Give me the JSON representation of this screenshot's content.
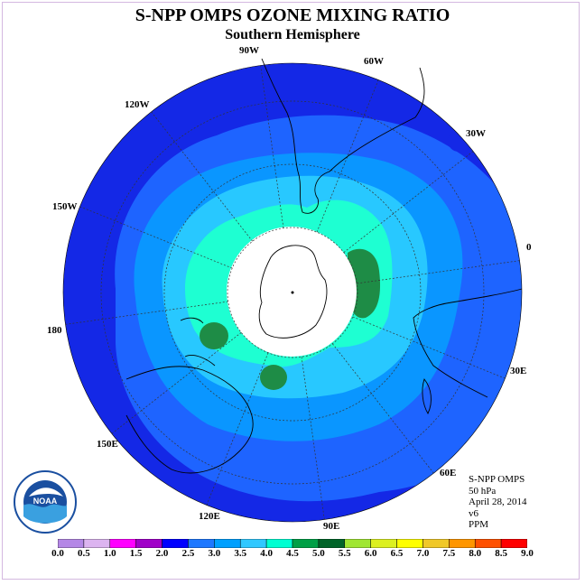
{
  "title": "S-NPP OMPS OZONE MIXING RATIO",
  "subtitle": "Southern Hemisphere",
  "longitude_labels": {
    "lon_90w": "90W",
    "lon_60w": "60W",
    "lon_120w": "120W",
    "lon_30w": "30W",
    "lon_150w": "150W",
    "lon_0": "0",
    "lon_180": "180",
    "lon_30e": "30E",
    "lon_150e": "150E",
    "lon_60e": "60E",
    "lon_120e": "120E",
    "lon_90e": "90E"
  },
  "info": {
    "instrument": "S-NPP OMPS",
    "level": "50 hPa",
    "date": "April 28, 2014",
    "version": "v6",
    "units": "PPM"
  },
  "logo": {
    "text": "NOAA"
  },
  "colorbar": {
    "ticks": [
      "0.0",
      "0.5",
      "1.0",
      "1.5",
      "2.0",
      "2.5",
      "3.0",
      "3.5",
      "4.0",
      "4.5",
      "5.0",
      "5.5",
      "6.0",
      "6.5",
      "7.0",
      "7.5",
      "8.0",
      "8.5",
      "9.0"
    ],
    "colors": [
      "#b487e6",
      "#dcb4f0",
      "#ff00ff",
      "#a000c8",
      "#0000ff",
      "#1e78ff",
      "#00a0ff",
      "#30c8ff",
      "#00ffd2",
      "#00a046",
      "#006428",
      "#a0e632",
      "#dcf020",
      "#ffff00",
      "#f0c828",
      "#ff9600",
      "#ff5000",
      "#ff0000",
      "#a0522d"
    ]
  },
  "map_colors": {
    "level_1_5_to_2_0": "#1428e6",
    "level_2_0_to_2_5": "#1e64ff",
    "level_2_5_to_3_0": "#0a96ff",
    "level_3_0_to_3_5": "#28c8ff",
    "level_3_5_to_4_0": "#1effd2",
    "level_4_0_to_4_5": "#1e8c46",
    "no_data": "#ffffff"
  }
}
